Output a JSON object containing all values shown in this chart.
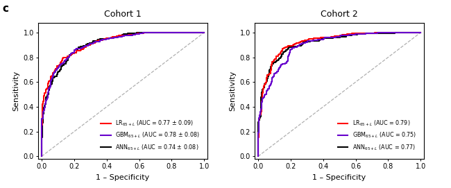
{
  "title1": "Cohort 1",
  "title2": "Cohort 2",
  "panel_label": "c",
  "xlabel": "1 – Specificity",
  "ylabel": "Sensitivity",
  "xlim": [
    -0.02,
    1.02
  ],
  "ylim": [
    -0.02,
    1.08
  ],
  "xticks": [
    0.0,
    0.2,
    0.4,
    0.6,
    0.8,
    1.0
  ],
  "yticks": [
    0.0,
    0.2,
    0.4,
    0.6,
    0.8,
    1.0
  ],
  "colors": {
    "LR": "#ff0000",
    "GBM": "#6600cc",
    "ANN": "#000000"
  },
  "legend1": [
    "LR$_{65+L}$ (AUC = 0.77 ± 0.09)",
    "GBM$_{65+L}$ (AUC = 0.78 ± 0.08)",
    "ANN$_{65+L}$ (AUC = 0.74 ± 0.08)"
  ],
  "legend2": [
    "LR$_{65+L}$ (AUC = 0.79)",
    "GBM$_{65+L}$ (AUC = 0.75)",
    "ANN$_{65+L}$ (AUC = 0.77)"
  ],
  "auc1": {
    "LR": 0.77,
    "GBM": 0.78,
    "ANN": 0.74
  },
  "auc2": {
    "LR": 0.79,
    "GBM": 0.75,
    "ANN": 0.77
  },
  "linewidth": 1.5,
  "background_color": "#ffffff",
  "diag_color": "#b0b0b0"
}
